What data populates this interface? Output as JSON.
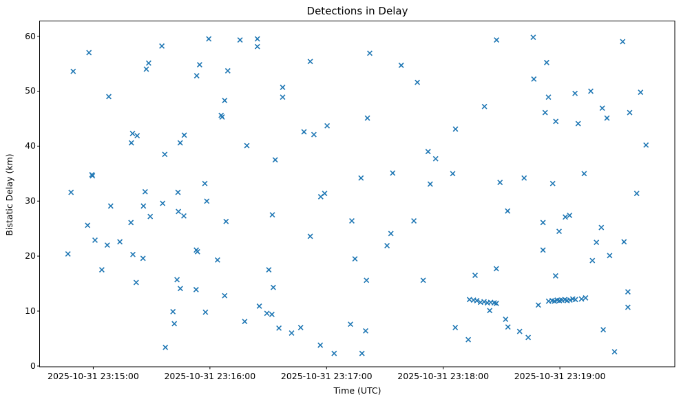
{
  "chart": {
    "title": "Detections in Delay",
    "xlabel": "Time (UTC)",
    "ylabel": "Bistatic Delay (km)"
  },
  "chart_data": {
    "type": "scatter",
    "title": "Detections in Delay",
    "xlabel": "Time (UTC)",
    "ylabel": "Bistatic Delay (km)",
    "marker": "x",
    "marker_color": "#1f77b4",
    "axis_color": "#000000",
    "grid": false,
    "legend": null,
    "x_base_time": "2025-10-31 23:15:00",
    "x_unit": "seconds after 2025-10-31 23:15:00 UTC",
    "x_tick_seconds": [
      0,
      60,
      120,
      180,
      240
    ],
    "x_tick_labels": [
      "2025-10-31 23:15:00",
      "2025-10-31 23:16:00",
      "2025-10-31 23:17:00",
      "2025-10-31 23:18:00",
      "2025-10-31 23:19:00"
    ],
    "y_ticks": [
      0,
      10,
      20,
      30,
      40,
      50,
      60
    ],
    "xlim_seconds": [
      -27.6,
      299.1
    ],
    "ylim": [
      -0.13,
      62.76
    ],
    "points": [
      [
        -13.0,
        20.4
      ],
      [
        -11.4,
        31.6
      ],
      [
        -10.3,
        53.6
      ],
      [
        -2.9,
        25.6
      ],
      [
        -2.2,
        57.0
      ],
      [
        -0.7,
        34.8
      ],
      [
        -0.4,
        34.6
      ],
      [
        0.9,
        22.9
      ],
      [
        4.4,
        17.5
      ],
      [
        7.2,
        22.0
      ],
      [
        8.0,
        49.0
      ],
      [
        9.0,
        29.1
      ],
      [
        13.7,
        22.6
      ],
      [
        19.4,
        26.1
      ],
      [
        19.6,
        40.6
      ],
      [
        20.2,
        42.3
      ],
      [
        20.4,
        20.3
      ],
      [
        22.1,
        15.2
      ],
      [
        22.6,
        41.9
      ],
      [
        25.6,
        19.6
      ],
      [
        25.8,
        29.1
      ],
      [
        26.7,
        31.7
      ],
      [
        27.3,
        54.0
      ],
      [
        28.5,
        55.1
      ],
      [
        29.3,
        27.2
      ],
      [
        35.3,
        58.2
      ],
      [
        35.7,
        29.6
      ],
      [
        36.8,
        38.5
      ],
      [
        37.1,
        3.4
      ],
      [
        41.0,
        9.9
      ],
      [
        41.7,
        7.7
      ],
      [
        43.1,
        15.7
      ],
      [
        43.6,
        31.6
      ],
      [
        43.8,
        28.1
      ],
      [
        44.7,
        40.6
      ],
      [
        44.8,
        14.1
      ],
      [
        46.6,
        27.3
      ],
      [
        46.8,
        42.0
      ],
      [
        52.9,
        13.9
      ],
      [
        53.0,
        21.1
      ],
      [
        53.2,
        52.8
      ],
      [
        53.6,
        20.8
      ],
      [
        54.7,
        54.8
      ],
      [
        57.4,
        33.2
      ],
      [
        57.7,
        9.8
      ],
      [
        58.4,
        30.0
      ],
      [
        59.4,
        59.5
      ],
      [
        63.9,
        19.3
      ],
      [
        65.8,
        45.6
      ],
      [
        66.3,
        45.3
      ],
      [
        67.6,
        48.3
      ],
      [
        67.6,
        12.8
      ],
      [
        68.3,
        26.3
      ],
      [
        69.2,
        53.7
      ],
      [
        75.5,
        59.3
      ],
      [
        77.9,
        8.1
      ],
      [
        79.0,
        40.1
      ],
      [
        84.4,
        59.5
      ],
      [
        84.4,
        58.1
      ],
      [
        85.4,
        10.9
      ],
      [
        89.3,
        9.6
      ],
      [
        90.3,
        17.5
      ],
      [
        91.9,
        9.4
      ],
      [
        92.1,
        27.5
      ],
      [
        92.6,
        14.3
      ],
      [
        93.6,
        37.5
      ],
      [
        95.5,
        6.9
      ],
      [
        97.4,
        50.7
      ],
      [
        97.4,
        48.9
      ],
      [
        102.0,
        6.0
      ],
      [
        106.7,
        7.0
      ],
      [
        108.4,
        42.6
      ],
      [
        111.6,
        55.4
      ],
      [
        111.6,
        23.6
      ],
      [
        113.5,
        42.1
      ],
      [
        116.8,
        3.8
      ],
      [
        117.0,
        30.8
      ],
      [
        119.0,
        31.4
      ],
      [
        120.3,
        43.7
      ],
      [
        123.9,
        2.3
      ],
      [
        132.3,
        7.6
      ],
      [
        133.0,
        26.4
      ],
      [
        134.6,
        19.5
      ],
      [
        137.7,
        34.2
      ],
      [
        138.2,
        2.3
      ],
      [
        140.1,
        6.4
      ],
      [
        140.5,
        15.6
      ],
      [
        141.0,
        45.1
      ],
      [
        142.2,
        56.9
      ],
      [
        151.1,
        21.9
      ],
      [
        153.1,
        24.1
      ],
      [
        154.0,
        35.1
      ],
      [
        158.4,
        54.7
      ],
      [
        164.9,
        26.4
      ],
      [
        166.7,
        51.6
      ],
      [
        169.7,
        15.6
      ],
      [
        172.2,
        39.0
      ],
      [
        173.3,
        33.1
      ],
      [
        176.1,
        37.7
      ],
      [
        184.9,
        35.0
      ],
      [
        186.2,
        7.0
      ],
      [
        186.3,
        43.1
      ],
      [
        192.9,
        4.8
      ],
      [
        193.5,
        12.1
      ],
      [
        195.6,
        12.0
      ],
      [
        196.4,
        16.5
      ],
      [
        197.3,
        11.9
      ],
      [
        199.2,
        11.6
      ],
      [
        201.0,
        11.7
      ],
      [
        201.2,
        47.2
      ],
      [
        202.7,
        11.5
      ],
      [
        203.9,
        10.1
      ],
      [
        204.4,
        11.6
      ],
      [
        206.2,
        11.5
      ],
      [
        207.3,
        11.4
      ],
      [
        207.3,
        17.7
      ],
      [
        207.4,
        59.3
      ],
      [
        209.2,
        33.4
      ],
      [
        212.1,
        8.5
      ],
      [
        213.1,
        28.2
      ],
      [
        213.3,
        7.1
      ],
      [
        219.3,
        6.3
      ],
      [
        221.6,
        34.2
      ],
      [
        223.7,
        5.2
      ],
      [
        226.3,
        59.8
      ],
      [
        226.6,
        52.2
      ],
      [
        228.9,
        11.1
      ],
      [
        231.3,
        26.1
      ],
      [
        231.3,
        21.1
      ],
      [
        232.4,
        46.1
      ],
      [
        233.2,
        55.2
      ],
      [
        234.1,
        48.9
      ],
      [
        234.2,
        11.8
      ],
      [
        236.0,
        11.9
      ],
      [
        236.3,
        33.2
      ],
      [
        237.2,
        11.8
      ],
      [
        237.8,
        16.4
      ],
      [
        237.9,
        44.5
      ],
      [
        238.6,
        12.0
      ],
      [
        239.6,
        24.5
      ],
      [
        239.8,
        11.9
      ],
      [
        241.0,
        12.0
      ],
      [
        242.5,
        12.1
      ],
      [
        242.8,
        27.1
      ],
      [
        243.7,
        11.9
      ],
      [
        245.0,
        27.4
      ],
      [
        245.2,
        12.0
      ],
      [
        246.6,
        12.2
      ],
      [
        247.8,
        49.6
      ],
      [
        248.0,
        12.1
      ],
      [
        249.4,
        44.1
      ],
      [
        251.1,
        12.2
      ],
      [
        252.5,
        35.0
      ],
      [
        253.2,
        12.4
      ],
      [
        255.9,
        50.0
      ],
      [
        256.7,
        19.2
      ],
      [
        258.8,
        22.5
      ],
      [
        261.3,
        25.2
      ],
      [
        261.8,
        46.9
      ],
      [
        262.3,
        6.6
      ],
      [
        264.2,
        45.1
      ],
      [
        265.6,
        20.1
      ],
      [
        268.1,
        2.6
      ],
      [
        272.3,
        59.0
      ],
      [
        273.0,
        22.6
      ],
      [
        275.0,
        13.5
      ],
      [
        275.0,
        10.7
      ],
      [
        275.9,
        46.1
      ],
      [
        279.5,
        31.4
      ],
      [
        281.5,
        49.8
      ],
      [
        284.3,
        40.2
      ]
    ]
  },
  "plot_geometry_note": ""
}
